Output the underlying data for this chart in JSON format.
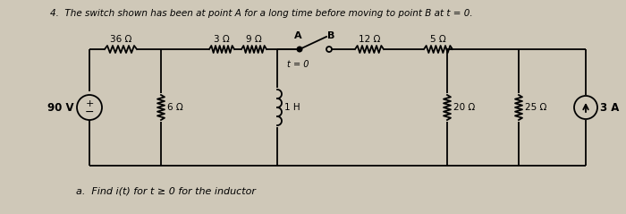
{
  "title": "4.  The switch shown has been at point A for a long time before moving to point B at t = 0.",
  "subtitle": "a.  Find i(t) for t ≥ 0 for the inductor",
  "bg_color": "#cfc8b8",
  "text_color": "#000000",
  "source_voltage": "90 V",
  "components": {
    "R1": "36 Ω",
    "R2": "3 Ω",
    "R3": "9 Ω",
    "R4": "12 Ω",
    "R5": "5 Ω",
    "R6": "6 Ω",
    "L1": "1 H",
    "R7": "20 Ω",
    "R8": "25 Ω",
    "Is": "3 A"
  },
  "switch_label_A": "A",
  "switch_label_B": "B",
  "switch_time": "t = 0"
}
